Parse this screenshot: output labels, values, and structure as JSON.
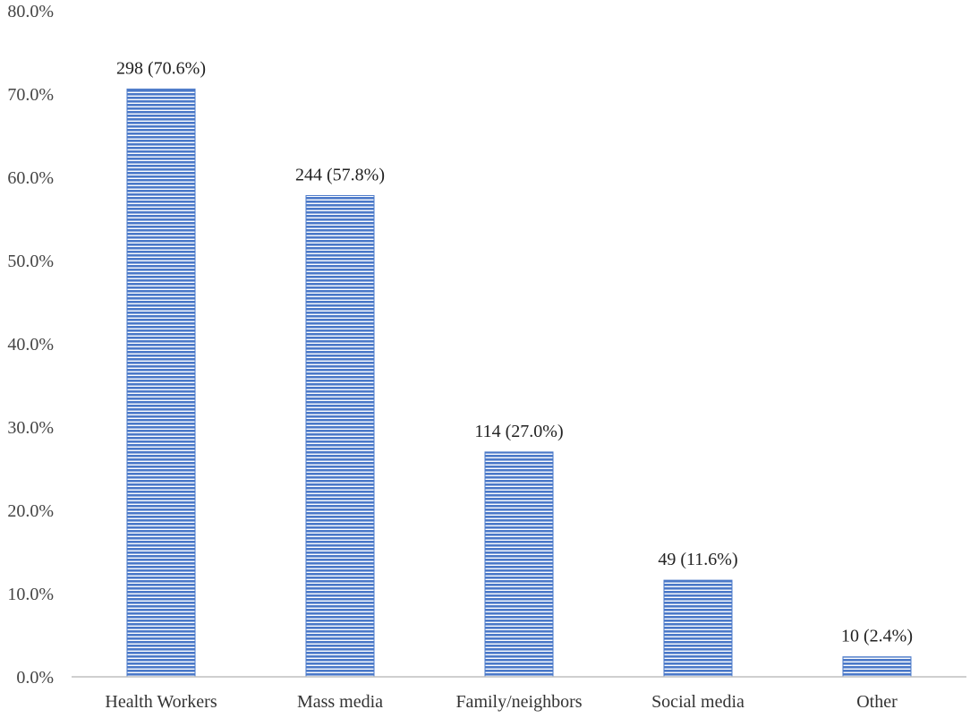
{
  "chart_data": {
    "type": "bar",
    "categories": [
      "Health Workers",
      "Mass media",
      "Family/neighbors",
      "Social media",
      "Other"
    ],
    "values": [
      70.6,
      57.8,
      27.0,
      11.6,
      2.4
    ],
    "data_labels": [
      "298 (70.6%)",
      "244 (57.8%)",
      "114 (27.0%)",
      "49 (11.6%)",
      "10 (2.4%)"
    ],
    "title": "",
    "xlabel": "",
    "ylabel": "",
    "ylim": [
      0,
      80
    ],
    "y_ticks": [
      0,
      10,
      20,
      30,
      40,
      50,
      60,
      70,
      80
    ],
    "y_tick_labels": [
      "0.0%",
      "10.0%",
      "20.0%",
      "30.0%",
      "40.0%",
      "50.0%",
      "60.0%",
      "70.0%",
      "80.0%"
    ],
    "grid": false,
    "legend": "none",
    "bar_color": "#4a78c8",
    "bar_pattern": "horizontal-stripes"
  }
}
